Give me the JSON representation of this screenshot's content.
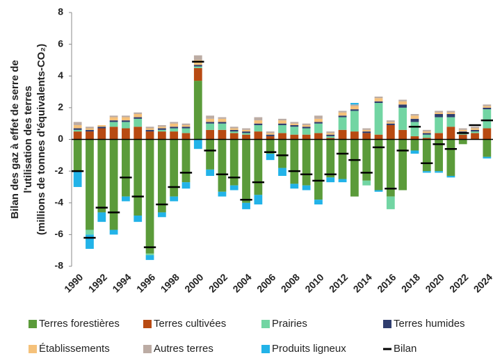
{
  "chart_data": {
    "type": "bar",
    "stacked": true,
    "ylabel": [
      "Bilan des gaz à effet de serre de",
      "l'utilisation des terres",
      "(millions de tonnes d'équivalents-CO₂)"
    ],
    "categories": [
      "1990",
      null,
      "1992",
      null,
      "1994",
      null,
      "1996",
      null,
      "1998",
      null,
      "2000",
      null,
      "2002",
      null,
      "2004",
      null,
      "2006",
      null,
      "2008",
      null,
      "2010",
      null,
      "2012",
      null,
      "2014",
      null,
      "2016",
      null,
      "2018",
      null,
      "2020",
      null,
      "2022",
      null,
      "2024"
    ],
    "series": [
      {
        "name": "Terres forestières",
        "color": "#5b9b3a",
        "values": [
          -2.0,
          -5.7,
          -4.6,
          -5.7,
          -3.6,
          -4.8,
          -7.2,
          -4.6,
          -3.6,
          -2.7,
          3.7,
          -1.9,
          -3.3,
          -2.9,
          -4.0,
          -3.5,
          -0.9,
          -1.8,
          -2.8,
          -2.9,
          -3.8,
          -2.4,
          -2.5,
          -3.6,
          -2.6,
          -3.2,
          -3.6,
          -3.2,
          -0.7,
          -2.0,
          -2.0,
          -2.3,
          -0.3,
          0.0,
          -1.1
        ]
      },
      {
        "name": "Terres cultivées",
        "color": "#b84a12",
        "values": [
          0.5,
          0.5,
          0.7,
          0.8,
          0.7,
          0.8,
          0.5,
          0.5,
          0.5,
          0.4,
          0.8,
          0.6,
          0.6,
          0.4,
          0.3,
          0.5,
          0.2,
          0.4,
          0.3,
          0.3,
          0.4,
          0.1,
          0.6,
          0.5,
          0.4,
          0.3,
          0.9,
          0.6,
          0.2,
          0.1,
          0.4,
          0.8,
          0.3,
          0.4,
          0.7
        ]
      },
      {
        "name": "Prairies",
        "color": "#72d5a3",
        "values": [
          0.1,
          -0.3,
          0.0,
          0.3,
          0.4,
          0.5,
          -0.1,
          0.1,
          0.2,
          0.3,
          0.1,
          0.4,
          0.4,
          0.1,
          0.1,
          0.4,
          0.0,
          0.5,
          0.5,
          0.4,
          0.6,
          0.1,
          0.8,
          1.3,
          -0.3,
          2.0,
          -0.8,
          1.4,
          0.9,
          0.2,
          1.0,
          0.6,
          0.1,
          0.1,
          1.2
        ]
      },
      {
        "name": "Terres humides",
        "color": "#2f3d6e",
        "values": [
          0.1,
          0.1,
          0.1,
          0.1,
          0.1,
          0.1,
          0.1,
          0.1,
          0.1,
          0.1,
          0.1,
          0.1,
          0.1,
          0.1,
          0.1,
          0.1,
          0.1,
          0.1,
          0.1,
          0.1,
          0.1,
          0.1,
          0.1,
          0.1,
          0.1,
          0.1,
          0.1,
          0.2,
          0.2,
          0.1,
          0.2,
          0.2,
          0.1,
          0.1,
          0.1
        ]
      },
      {
        "name": "Établissements",
        "color": "#f5c17a",
        "values": [
          0.2,
          0.1,
          0.1,
          0.2,
          0.2,
          0.2,
          0.1,
          0.1,
          0.2,
          0.1,
          0.3,
          0.2,
          0.2,
          0.1,
          0.1,
          0.2,
          0.1,
          0.2,
          0.1,
          0.1,
          0.2,
          0.1,
          0.2,
          0.2,
          0.1,
          0.2,
          0.1,
          0.2,
          0.2,
          0.1,
          0.1,
          0.1,
          0.1,
          0.1,
          0.1
        ]
      },
      {
        "name": "Autres terres",
        "color": "#bcaca4",
        "values": [
          0.2,
          0.1,
          0.0,
          0.1,
          0.1,
          0.1,
          0.1,
          0.1,
          0.1,
          0.1,
          0.3,
          0.2,
          0.1,
          0.1,
          0.1,
          0.2,
          0.1,
          0.1,
          0.1,
          0.1,
          0.2,
          0.1,
          0.1,
          0.1,
          0.1,
          0.1,
          0.1,
          0.1,
          0.1,
          0.1,
          0.1,
          0.1,
          0.1,
          0.1,
          0.1
        ]
      },
      {
        "name": "Produits ligneux",
        "color": "#22b3e8",
        "values": [
          -1.0,
          -0.9,
          -0.6,
          -0.3,
          -0.3,
          -0.4,
          -0.3,
          -0.3,
          -0.3,
          -0.4,
          -0.6,
          -0.4,
          -0.3,
          -0.3,
          -0.4,
          -0.6,
          -0.4,
          -0.5,
          -0.3,
          -0.3,
          -0.3,
          -0.3,
          -0.2,
          0.1,
          0.0,
          -0.1,
          0.0,
          0.0,
          -0.2,
          -0.1,
          -0.1,
          -0.1,
          0.0,
          0.0,
          -0.1
        ]
      }
    ],
    "bilan": {
      "name": "Bilan",
      "color": "#000000",
      "values": [
        -2.0,
        -6.2,
        -4.3,
        -4.6,
        -2.4,
        -3.6,
        -6.8,
        -4.1,
        -3.0,
        -2.1,
        4.9,
        -0.7,
        -2.2,
        -2.4,
        -3.8,
        -2.7,
        -0.8,
        -1.0,
        -2.0,
        -2.2,
        -2.6,
        -2.2,
        -0.9,
        -1.3,
        -2.1,
        -0.5,
        -3.1,
        -0.7,
        0.8,
        -1.5,
        -0.3,
        -0.6,
        0.4,
        0.9,
        1.2
      ]
    },
    "ylim": [
      -8,
      8
    ],
    "yticks": [
      -8,
      -6,
      -4,
      -2,
      0,
      2,
      4,
      6,
      8
    ],
    "grid": false
  }
}
